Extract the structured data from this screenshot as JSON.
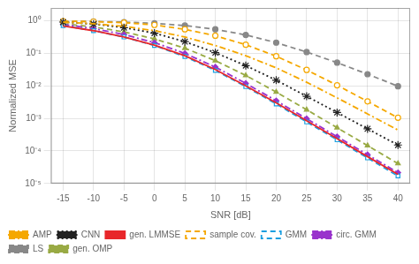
{
  "chart_data": {
    "type": "line",
    "xlabel": "SNR [dB]",
    "ylabel": "Normalized MSE",
    "x": [
      -15,
      -10,
      -5,
      0,
      5,
      10,
      15,
      20,
      25,
      30,
      35,
      40
    ],
    "series": [
      {
        "name": "AMP",
        "color": "#f5a800",
        "line_style": "dashdot",
        "marker": "none",
        "values": [
          0.92,
          0.82,
          0.68,
          0.5,
          0.32,
          0.175,
          0.085,
          0.036,
          0.013,
          0.0043,
          0.00138,
          0.00044
        ]
      },
      {
        "name": "CNN",
        "color": "#222222",
        "line_style": "dotted",
        "marker": "star",
        "values": [
          0.92,
          0.8,
          0.62,
          0.42,
          0.23,
          0.105,
          0.042,
          0.015,
          0.0048,
          0.00152,
          0.00048,
          0.000152
        ]
      },
      {
        "name": "gen. LMMSE",
        "color": "#e8262a",
        "line_style": "solid",
        "marker": "none",
        "values": [
          0.7,
          0.5,
          0.32,
          0.18,
          0.085,
          0.032,
          0.01,
          0.003,
          0.00085,
          0.00024,
          6.7e-05,
          1.9e-05
        ]
      },
      {
        "name": "sample cov.",
        "color": "#f5a800",
        "line_style": "dashed",
        "marker": "open_circle",
        "values": [
          0.98,
          0.95,
          0.88,
          0.75,
          0.55,
          0.35,
          0.185,
          0.082,
          0.031,
          0.0105,
          0.00335,
          0.00105
        ]
      },
      {
        "name": "GMM",
        "color": "#1a9fe0",
        "line_style": "dashed",
        "marker": "open_square",
        "values": [
          0.72,
          0.5,
          0.32,
          0.175,
          0.08,
          0.03,
          0.0095,
          0.0028,
          0.00078,
          0.00022,
          6.1e-05,
          1.7e-05
        ]
      },
      {
        "name": "circ. GMM",
        "color": "#9933cc",
        "line_style": "dashdot",
        "marker": "diamond",
        "values": [
          0.78,
          0.58,
          0.38,
          0.215,
          0.1,
          0.038,
          0.012,
          0.0035,
          0.00098,
          0.000275,
          7.7e-05,
          2.15e-05
        ]
      },
      {
        "name": "LS",
        "color": "#888888",
        "line_style": "dashed",
        "marker": "circle",
        "values": [
          0.98,
          0.96,
          0.92,
          0.84,
          0.72,
          0.55,
          0.37,
          0.215,
          0.11,
          0.052,
          0.023,
          0.0098
        ]
      },
      {
        "name": "gen. OMP",
        "color": "#99aa44",
        "line_style": "dashed",
        "marker": "triangle",
        "values": [
          0.82,
          0.65,
          0.46,
          0.28,
          0.145,
          0.06,
          0.021,
          0.0065,
          0.00185,
          0.00052,
          0.000146,
          4.1e-05
        ]
      }
    ],
    "xlim": [
      -17,
      42
    ],
    "xticks": [
      -15,
      -10,
      -5,
      0,
      5,
      10,
      15,
      20,
      25,
      30,
      35,
      40
    ],
    "ylim": [
      1e-05,
      2.5
    ],
    "yticks": [
      {
        "value": 1e-05,
        "label": "10⁻⁵"
      },
      {
        "value": 0.0001,
        "label": "10⁻⁴"
      },
      {
        "value": 0.001,
        "label": "10⁻³"
      },
      {
        "value": 0.01,
        "label": "10⁻²"
      },
      {
        "value": 0.1,
        "label": "10⁻¹"
      },
      {
        "value": 1.0,
        "label": "10⁰"
      }
    ],
    "log": "y",
    "grid": true,
    "legend": "lower left"
  }
}
